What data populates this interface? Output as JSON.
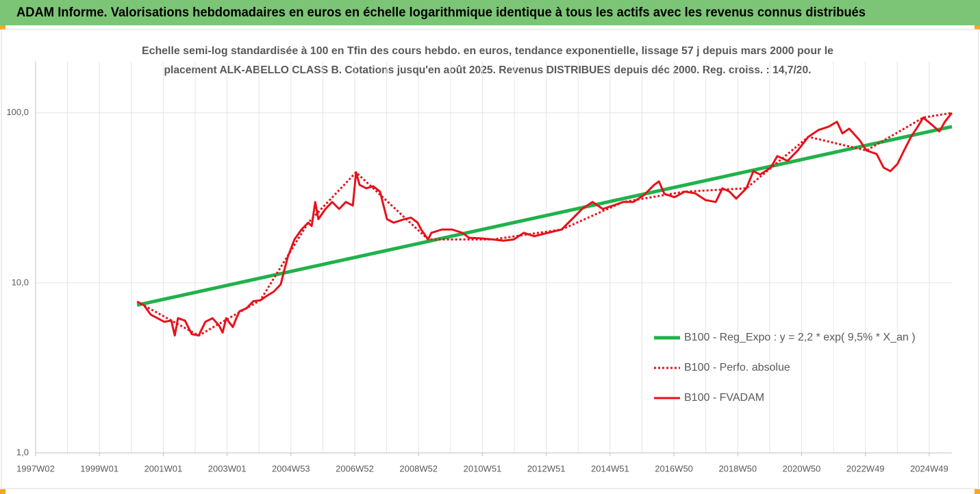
{
  "chart_data": {
    "type": "line",
    "title": "ADAM Informe. Valorisations hebdomadaires en euros en échelle logarithmique identique à tous les actifs avec les revenus connus distribués",
    "subtitle": [
      "Echelle semi-log standardisée à 100 en Tfin des cours hebdo. en euros, tendance exponentielle, lissage 57 j depuis mars 2000 pour le",
      "placement ALK-ABELLO CLASS B. Cotations jusqu'en août 2025. Revenus DISTRIBUES depuis déc 2000. Reg. croiss. : 14,7/20."
    ],
    "log_scale": true,
    "ylim": [
      1,
      200
    ],
    "yticks": [
      {
        "value": 1,
        "label": "1,0"
      },
      {
        "value": 10,
        "label": "10,0"
      },
      {
        "value": 100,
        "label": "100,0"
      }
    ],
    "xlim": [
      1997.0,
      2025.71
    ],
    "xticks": [
      {
        "value": 1997.0,
        "label": "1997W02"
      },
      {
        "value": 1999.0,
        "label": "1999W01"
      },
      {
        "value": 2001.0,
        "label": "2001W01"
      },
      {
        "value": 2003.0,
        "label": "2003W01"
      },
      {
        "value": 2005.0,
        "label": "2004W53"
      },
      {
        "value": 2007.0,
        "label": "2006W52"
      },
      {
        "value": 2009.0,
        "label": "2008W52"
      },
      {
        "value": 2011.0,
        "label": "2010W51"
      },
      {
        "value": 2013.0,
        "label": "2012W51"
      },
      {
        "value": 2015.0,
        "label": "2014W51"
      },
      {
        "value": 2017.0,
        "label": "2016W50"
      },
      {
        "value": 2019.0,
        "label": "2018W50"
      },
      {
        "value": 2021.0,
        "label": "2020W50"
      },
      {
        "value": 2023.0,
        "label": "2022W49"
      },
      {
        "value": 2025.0,
        "label": "2024W49"
      }
    ],
    "xminorticks": [
      1998,
      2000,
      2002,
      2004,
      2006,
      2008,
      2010,
      2012,
      2014,
      2016,
      2018,
      2020,
      2022,
      2024
    ],
    "grid": true,
    "legend_position": "lower right",
    "series": [
      {
        "name": "B100 - Reg_Expo : y = 2,2 * exp( 9,5% *  X_an )",
        "color": "#1fb24a",
        "style": "solid",
        "width": 5,
        "x": [
          2000.18,
          2025.71
        ],
        "values": [
          7.4,
          83
        ]
      },
      {
        "name": "B100 - Perfo. absolue",
        "color": "#e8101a",
        "style": "dotted",
        "width": 3,
        "x": [
          2000.18,
          2002.11,
          2004.04,
          2005.54,
          2007.04,
          2009.3,
          2011.33,
          2013.48,
          2015.41,
          2017.34,
          2019.27,
          2021.21,
          2023.03,
          2024.81,
          2025.71
        ],
        "values": [
          7.75,
          4.9,
          7.9,
          22.6,
          44.7,
          18.0,
          18.0,
          20.6,
          29.9,
          34.4,
          36.0,
          72.3,
          60.1,
          93.7,
          100
        ]
      },
      {
        "name": "B100 - FVADAM",
        "color": "#e8101a",
        "style": "solid",
        "width": 3,
        "x": [
          2000.18,
          2000.39,
          2000.61,
          2000.82,
          2001.03,
          2001.25,
          2001.36,
          2001.46,
          2001.68,
          2001.89,
          2002.11,
          2002.32,
          2002.54,
          2002.75,
          2002.86,
          2002.97,
          2003.18,
          2003.29,
          2003.39,
          2003.61,
          2003.82,
          2004.04,
          2004.25,
          2004.47,
          2004.68,
          2004.79,
          2004.9,
          2005.11,
          2005.33,
          2005.54,
          2005.65,
          2005.76,
          2005.86,
          2006.08,
          2006.29,
          2006.51,
          2006.72,
          2006.94,
          2007.04,
          2007.15,
          2007.36,
          2007.58,
          2007.79,
          2008.01,
          2008.22,
          2008.55,
          2008.76,
          2008.97,
          2009.08,
          2009.3,
          2009.4,
          2009.73,
          2010.05,
          2010.37,
          2010.58,
          2010.91,
          2011.33,
          2011.66,
          2011.98,
          2012.3,
          2012.62,
          2013.05,
          2013.48,
          2013.91,
          2014.12,
          2014.45,
          2014.77,
          2015.09,
          2015.41,
          2015.73,
          2016.06,
          2016.38,
          2016.53,
          2016.7,
          2017.02,
          2017.34,
          2017.67,
          2017.99,
          2018.31,
          2018.52,
          2018.74,
          2018.95,
          2019.27,
          2019.49,
          2019.7,
          2020.03,
          2020.24,
          2020.56,
          2020.88,
          2021.21,
          2021.53,
          2021.85,
          2022.11,
          2022.28,
          2022.49,
          2022.82,
          2023.03,
          2023.35,
          2023.57,
          2023.78,
          2024.0,
          2024.21,
          2024.43,
          2024.64,
          2024.81,
          2025.07,
          2025.32,
          2025.49,
          2025.71
        ],
        "values": [
          7.75,
          7.4,
          6.5,
          6.2,
          5.9,
          6.0,
          4.9,
          6.2,
          6.0,
          5.0,
          4.9,
          5.9,
          6.2,
          5.6,
          5.1,
          6.2,
          5.5,
          6.2,
          6.8,
          7.1,
          7.8,
          7.9,
          8.4,
          8.9,
          9.8,
          11.8,
          14.2,
          18.0,
          20.6,
          22.6,
          21.6,
          29.9,
          23.7,
          27.2,
          29.9,
          27.2,
          29.9,
          28.5,
          44.7,
          37.7,
          36.0,
          37.0,
          34.4,
          23.7,
          22.6,
          23.7,
          24.2,
          22.6,
          20.6,
          18.0,
          19.7,
          20.6,
          20.6,
          19.7,
          18.4,
          18.3,
          18.0,
          17.7,
          18.0,
          19.7,
          18.8,
          19.7,
          20.6,
          24.8,
          27.2,
          29.9,
          27.2,
          28.5,
          29.9,
          29.9,
          32.8,
          37.7,
          39.5,
          33.4,
          31.9,
          34.4,
          33.6,
          30.7,
          29.9,
          36.0,
          34.4,
          31.3,
          36.0,
          45.4,
          43.4,
          47.6,
          55.7,
          52.2,
          60.1,
          72.3,
          79.3,
          83.0,
          88.6,
          75.7,
          80.7,
          69.0,
          60.1,
          57.3,
          47.6,
          45.4,
          49.9,
          60.1,
          72.3,
          83.0,
          93.7,
          85.4,
          77.8,
          88.6,
          100
        ]
      }
    ]
  }
}
